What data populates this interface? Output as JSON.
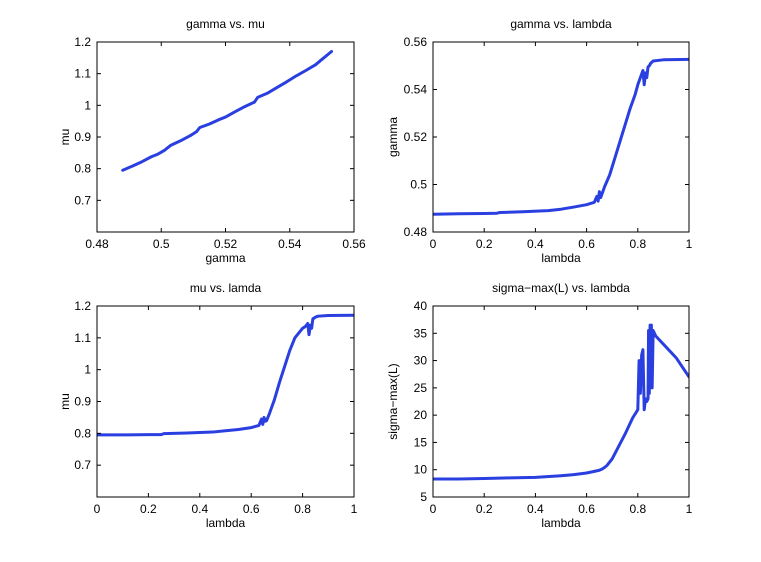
{
  "page": {
    "background": "#ffffff",
    "line_color": "#2a3fe0"
  },
  "chart_data": [
    {
      "type": "line",
      "title": "gamma vs. mu",
      "xlabel": "gamma",
      "ylabel": "mu",
      "xlim": [
        0.48,
        0.56
      ],
      "ylim": [
        0.6,
        1.2
      ],
      "xticks": [
        0.48,
        0.5,
        0.52,
        0.54,
        0.56
      ],
      "xtick_labels": [
        "0.48",
        "0.5",
        "0.52",
        "0.54",
        "0.56"
      ],
      "yticks": [
        0.7,
        0.8,
        0.9,
        1.0,
        1.1,
        1.2
      ],
      "ytick_labels": [
        "0.7",
        "0.8",
        "0.9",
        "1",
        "1.1",
        "1.2"
      ],
      "grid": false,
      "series": [
        {
          "color": "#2a3fe0",
          "x": [
            0.488,
            0.491,
            0.494,
            0.497,
            0.499,
            0.501,
            0.503,
            0.506,
            0.509,
            0.511,
            0.512,
            0.515,
            0.518,
            0.52,
            0.523,
            0.526,
            0.529,
            0.53,
            0.533,
            0.536,
            0.539,
            0.542,
            0.545,
            0.548,
            0.55,
            0.553
          ],
          "y": [
            0.795,
            0.808,
            0.822,
            0.838,
            0.846,
            0.858,
            0.874,
            0.888,
            0.904,
            0.917,
            0.93,
            0.941,
            0.955,
            0.963,
            0.98,
            0.996,
            1.01,
            1.025,
            1.038,
            1.056,
            1.074,
            1.093,
            1.11,
            1.128,
            1.145,
            1.17
          ]
        }
      ]
    },
    {
      "type": "line",
      "title": "gamma vs. lambda",
      "xlabel": "lambda",
      "ylabel": "gamma",
      "xlim": [
        0,
        1
      ],
      "ylim": [
        0.48,
        0.56
      ],
      "xticks": [
        0,
        0.2,
        0.4,
        0.6,
        0.8,
        1
      ],
      "xtick_labels": [
        "0",
        "0.2",
        "0.4",
        "0.6",
        "0.8",
        "1"
      ],
      "yticks": [
        0.48,
        0.5,
        0.52,
        0.54,
        0.56
      ],
      "ytick_labels": [
        "0.48",
        "0.5",
        "0.52",
        "0.54",
        "0.56"
      ],
      "grid": false,
      "series": [
        {
          "color": "#2a3fe0",
          "x": [
            0,
            0.1,
            0.2,
            0.25,
            0.26,
            0.35,
            0.45,
            0.5,
            0.55,
            0.6,
            0.63,
            0.64,
            0.645,
            0.65,
            0.655,
            0.66,
            0.67,
            0.69,
            0.71,
            0.73,
            0.75,
            0.77,
            0.79,
            0.8,
            0.81,
            0.82,
            0.825,
            0.83,
            0.835,
            0.84,
            0.845,
            0.85,
            0.86,
            0.9,
            1.0
          ],
          "y": [
            0.4875,
            0.4877,
            0.4878,
            0.4879,
            0.4882,
            0.4885,
            0.489,
            0.4896,
            0.4905,
            0.4915,
            0.4925,
            0.495,
            0.493,
            0.497,
            0.4945,
            0.496,
            0.499,
            0.504,
            0.511,
            0.518,
            0.525,
            0.532,
            0.538,
            0.542,
            0.545,
            0.548,
            0.542,
            0.547,
            0.545,
            0.5495,
            0.55,
            0.551,
            0.552,
            0.5525,
            0.5527
          ]
        }
      ]
    },
    {
      "type": "line",
      "title": "mu vs. lamda",
      "xlabel": "lambda",
      "ylabel": "mu",
      "xlim": [
        0,
        1
      ],
      "ylim": [
        0.6,
        1.2
      ],
      "xticks": [
        0,
        0.2,
        0.4,
        0.6,
        0.8,
        1
      ],
      "xtick_labels": [
        "0",
        "0.2",
        "0.4",
        "0.6",
        "0.8",
        "1"
      ],
      "yticks": [
        0.7,
        0.8,
        0.9,
        1.0,
        1.1,
        1.2
      ],
      "ytick_labels": [
        "0.7",
        "0.8",
        "0.9",
        "1",
        "1.1",
        "1.2"
      ],
      "grid": false,
      "series": [
        {
          "color": "#2a3fe0",
          "x": [
            0,
            0.1,
            0.2,
            0.25,
            0.26,
            0.35,
            0.45,
            0.5,
            0.55,
            0.6,
            0.63,
            0.64,
            0.645,
            0.65,
            0.655,
            0.66,
            0.67,
            0.69,
            0.71,
            0.73,
            0.75,
            0.77,
            0.79,
            0.8,
            0.81,
            0.82,
            0.825,
            0.83,
            0.835,
            0.84,
            0.845,
            0.85,
            0.86,
            0.9,
            1.0
          ],
          "y": [
            0.795,
            0.795,
            0.796,
            0.796,
            0.799,
            0.801,
            0.804,
            0.808,
            0.812,
            0.818,
            0.825,
            0.845,
            0.828,
            0.85,
            0.838,
            0.84,
            0.86,
            0.905,
            0.96,
            1.01,
            1.06,
            1.1,
            1.12,
            1.13,
            1.135,
            1.145,
            1.11,
            1.14,
            1.13,
            1.16,
            1.162,
            1.165,
            1.168,
            1.17,
            1.171
          ]
        }
      ]
    },
    {
      "type": "line",
      "title": "sigma−max(L) vs. lambda",
      "xlabel": "lambda",
      "ylabel": "sigma−max(L)",
      "xlim": [
        0,
        1
      ],
      "ylim": [
        5,
        40
      ],
      "xticks": [
        0,
        0.2,
        0.4,
        0.6,
        0.8,
        1
      ],
      "xtick_labels": [
        "0",
        "0.2",
        "0.4",
        "0.6",
        "0.8",
        "1"
      ],
      "yticks": [
        5,
        10,
        15,
        20,
        25,
        30,
        35,
        40
      ],
      "ytick_labels": [
        "5",
        "10",
        "15",
        "20",
        "25",
        "30",
        "35",
        "40"
      ],
      "grid": false,
      "series": [
        {
          "color": "#2a3fe0",
          "x": [
            0,
            0.1,
            0.2,
            0.3,
            0.4,
            0.5,
            0.55,
            0.6,
            0.63,
            0.65,
            0.66,
            0.67,
            0.68,
            0.7,
            0.72,
            0.75,
            0.78,
            0.8,
            0.805,
            0.81,
            0.815,
            0.82,
            0.825,
            0.83,
            0.835,
            0.84,
            0.842,
            0.845,
            0.848,
            0.85,
            0.853,
            0.856,
            0.86,
            0.87,
            0.9,
            0.95,
            1.0
          ],
          "y": [
            8.3,
            8.3,
            8.4,
            8.5,
            8.6,
            8.9,
            9.1,
            9.4,
            9.7,
            9.9,
            10.1,
            10.4,
            10.8,
            12.0,
            13.8,
            16.5,
            19.5,
            21.0,
            30.0,
            24.0,
            31.0,
            32.0,
            21.0,
            23.0,
            22.5,
            23.0,
            35.5,
            24.0,
            36.5,
            35.0,
            36.5,
            25.0,
            35.5,
            34.5,
            33.0,
            30.5,
            27.0
          ]
        }
      ]
    }
  ]
}
